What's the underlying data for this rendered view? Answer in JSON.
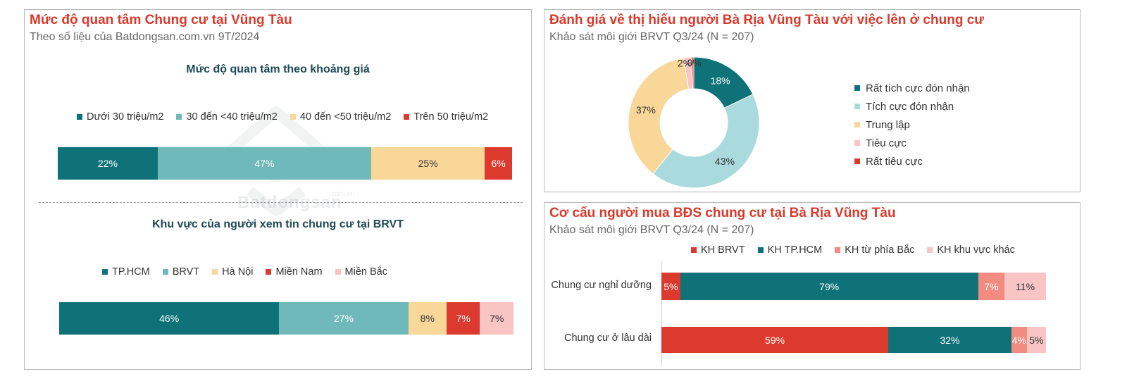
{
  "colors": {
    "teal": "#0f7278",
    "light_teal": "#6fb9ba",
    "cream": "#f9d799",
    "red": "#dc3a2e",
    "pink": "#f8c4c4",
    "light_blue": "#a9dadd",
    "salmon": "#f28b80"
  },
  "left_panel": {
    "title": "Mức độ quan tâm Chung cư tại Vũng Tàu",
    "subtitle": "Theo số liệu của Batdongsan.com.vn 9T/2024",
    "watermark": "Batdongsan",
    "watermark_suffix": ".com.vn"
  },
  "right_top_panel": {
    "title": "Đánh giá về thị hiếu người Bà Rịa Vũng Tàu với việc lên ở chung cư",
    "subtitle": "Khảo sát môi giới BRVT Q3/24 (N = 207)"
  },
  "right_bottom_panel": {
    "title": "Cơ cấu người mua BĐS chung cư tại Bà Rịa Vũng Tàu",
    "subtitle": "Khảo sát môi giới BRVT Q3/24 (N = 207)"
  },
  "chart_data": [
    {
      "type": "bar",
      "orientation": "horizontal-stacked",
      "title": "Mức độ quan tâm theo khoảng giá",
      "legend_position": "top",
      "series": [
        {
          "name": "Dưới 30 triệu/m2",
          "values": [
            22
          ],
          "labels": [
            "22%"
          ],
          "color": "#0f7278"
        },
        {
          "name": "30 đến <40 triệu/m2",
          "values": [
            47
          ],
          "labels": [
            "47%"
          ],
          "color": "#6fb9ba"
        },
        {
          "name": "40 đến <50 triệu/m2",
          "values": [
            25
          ],
          "labels": [
            "25%"
          ],
          "color": "#f9d799"
        },
        {
          "name": "Trên 50 triệu/m2",
          "values": [
            6
          ],
          "labels": [
            "6%"
          ],
          "color": "#dc3a2e"
        }
      ]
    },
    {
      "type": "bar",
      "orientation": "horizontal-stacked",
      "title": "Khu vực của người xem tin chung cư tại BRVT",
      "legend_position": "top",
      "series": [
        {
          "name": "TP.HCM",
          "values": [
            46
          ],
          "labels": [
            "46%"
          ],
          "color": "#0f7278"
        },
        {
          "name": "BRVT",
          "values": [
            27
          ],
          "labels": [
            "27%"
          ],
          "color": "#6fb9ba"
        },
        {
          "name": "Hà Nội",
          "values": [
            8
          ],
          "labels": [
            "8%"
          ],
          "color": "#f9d799"
        },
        {
          "name": "Miền Nam",
          "values": [
            7
          ],
          "labels": [
            "7%"
          ],
          "color": "#dc3a2e"
        },
        {
          "name": "Miền Bắc",
          "values": [
            7
          ],
          "labels": [
            "7%"
          ],
          "color": "#f8c4c4"
        }
      ]
    },
    {
      "type": "pie",
      "variant": "donut",
      "legend_position": "right",
      "slices": [
        {
          "name": "Rất tích cực đón nhận",
          "value": 18,
          "label": "18%",
          "color": "#0f7278"
        },
        {
          "name": "Tích cực đón nhận",
          "value": 43,
          "label": "43%",
          "color": "#a9dadd"
        },
        {
          "name": "Trung lập",
          "value": 37,
          "label": "37%",
          "color": "#f9d799"
        },
        {
          "name": "Tiêu cực",
          "value": 2,
          "label": "2%",
          "color": "#f8c4c4"
        },
        {
          "name": "Rất tiêu cực",
          "value": 0.5,
          "label": "0%",
          "color": "#dc3a2e"
        }
      ]
    },
    {
      "type": "bar",
      "orientation": "horizontal-stacked",
      "legend_position": "top",
      "categories": [
        "Chung cư nghỉ dưỡng",
        "Chung cư ở lâu dài"
      ],
      "series": [
        {
          "name": "KH BRVT",
          "values": [
            5,
            59
          ],
          "labels": [
            "5%",
            "59%"
          ],
          "color": "#dc3a2e"
        },
        {
          "name": "KH TP.HCM",
          "values": [
            79,
            32
          ],
          "labels": [
            "79%",
            "32%"
          ],
          "color": "#0f7278"
        },
        {
          "name": "KH từ phía Bắc",
          "values": [
            7,
            4
          ],
          "labels": [
            "7%",
            "4%"
          ],
          "color": "#f28b80"
        },
        {
          "name": "KH khu vực khác",
          "values": [
            11,
            5
          ],
          "labels": [
            "11%",
            "5%"
          ],
          "color": "#f8c4c4"
        }
      ]
    }
  ]
}
